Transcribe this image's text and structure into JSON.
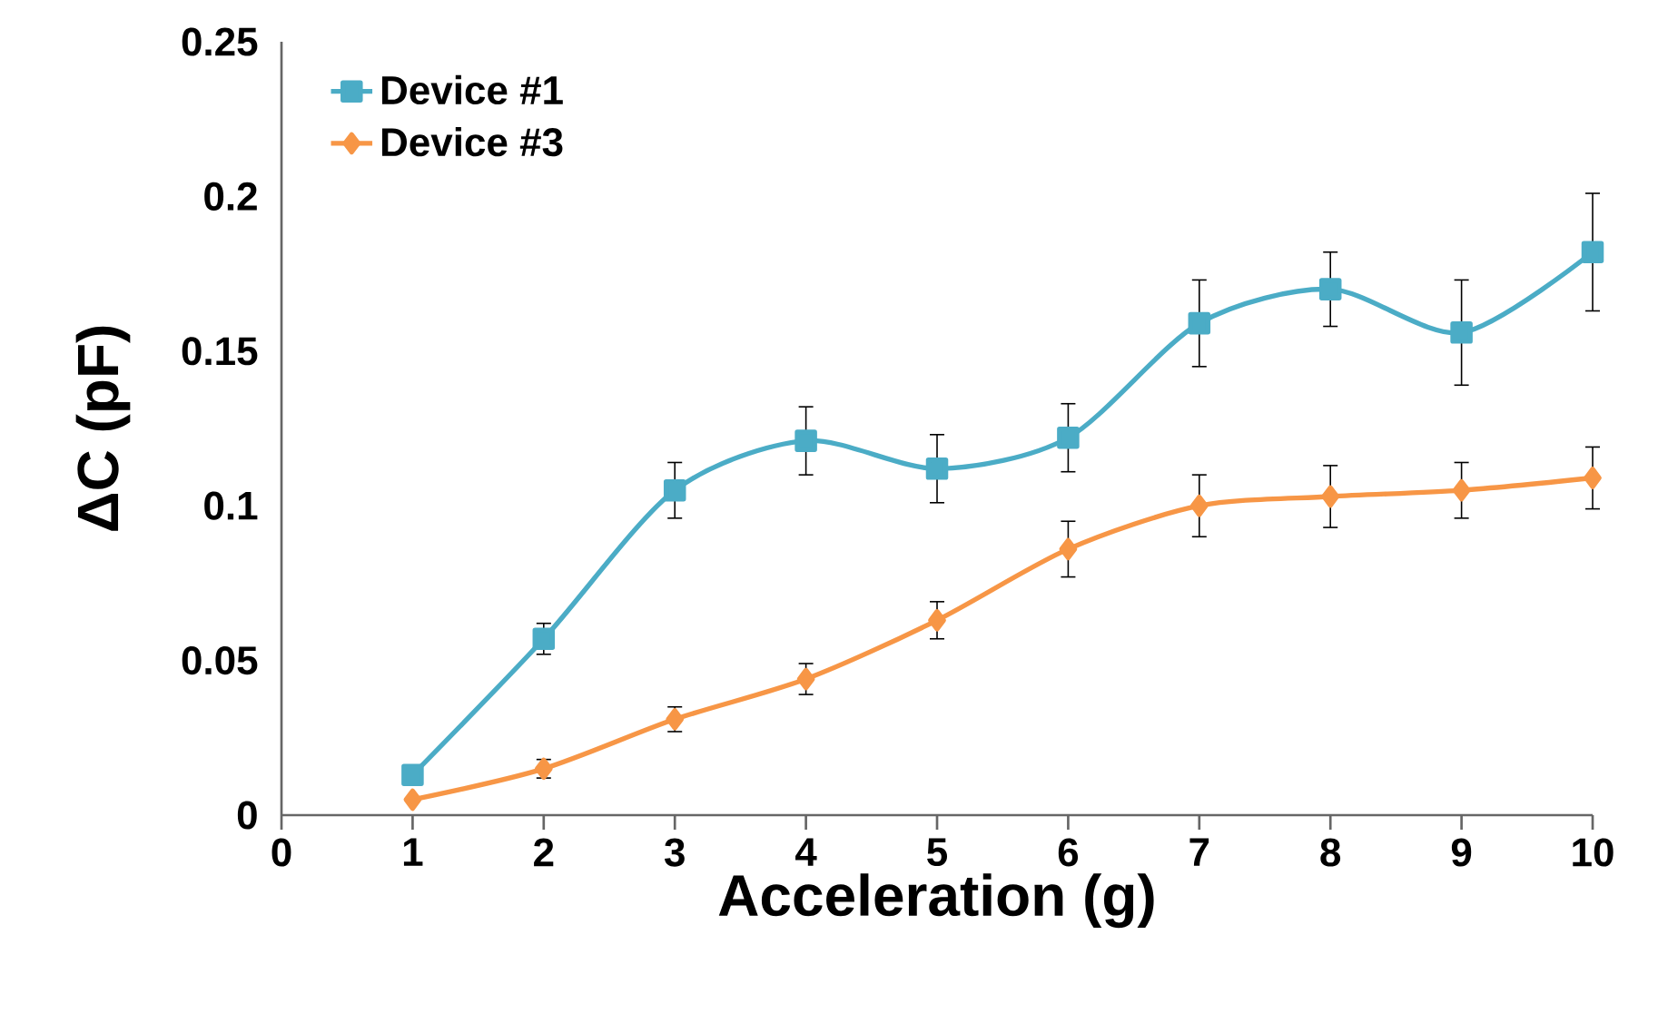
{
  "chart_data": {
    "type": "line",
    "xlabel": "Acceleration (g)",
    "ylabel": "ΔC (pF)",
    "x": [
      1,
      2,
      3,
      4,
      5,
      6,
      7,
      8,
      9,
      10
    ],
    "xlim": [
      0,
      10
    ],
    "xticks": [
      0,
      1,
      2,
      3,
      4,
      5,
      6,
      7,
      8,
      9,
      10
    ],
    "ylim": [
      0,
      0.25
    ],
    "yticks": [
      0,
      0.05,
      0.1,
      0.15,
      0.2,
      0.25
    ],
    "legend": "top left",
    "grid": false,
    "line_style": "solid",
    "series": [
      {
        "name": "Device #1",
        "color": "#4bacc6",
        "marker": "square",
        "values": [
          0.013,
          0.057,
          0.105,
          0.121,
          0.112,
          0.122,
          0.159,
          0.17,
          0.156,
          0.182
        ],
        "errors": [
          null,
          0.005,
          0.009,
          0.011,
          0.011,
          0.011,
          0.014,
          0.012,
          0.017,
          0.019
        ]
      },
      {
        "name": "Device #3",
        "color": "#f79646",
        "marker": "diamond",
        "values": [
          0.005,
          0.015,
          0.031,
          0.044,
          0.063,
          0.086,
          0.1,
          0.103,
          0.105,
          0.109
        ],
        "errors": [
          null,
          0.003,
          0.004,
          0.005,
          0.006,
          0.009,
          0.01,
          0.01,
          0.009,
          0.01
        ]
      }
    ]
  }
}
